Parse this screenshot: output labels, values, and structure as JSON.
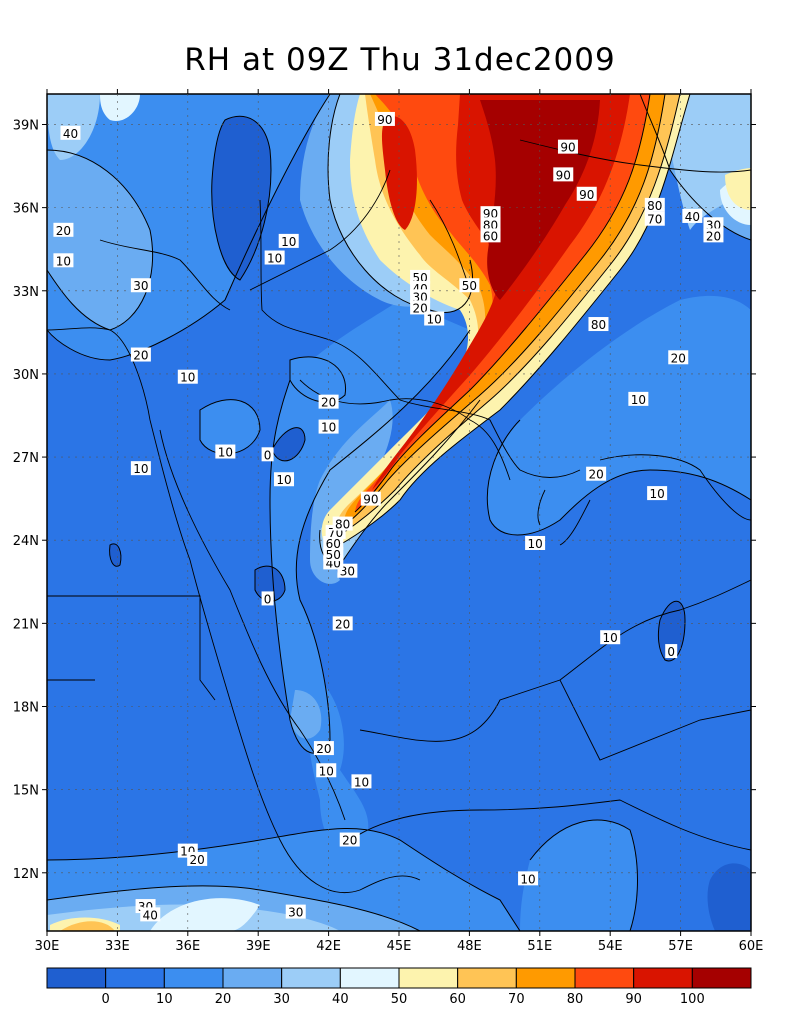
{
  "title": "RH at 09Z Thu 31dec2009",
  "lon_ticks": [
    "30E",
    "33E",
    "36E",
    "39E",
    "42E",
    "45E",
    "48E",
    "51E",
    "54E",
    "57E",
    "60E"
  ],
  "lat_ticks": [
    "39N",
    "36N",
    "33N",
    "30N",
    "27N",
    "24N",
    "21N",
    "18N",
    "15N",
    "12N"
  ],
  "colorbar": {
    "colors": [
      "#1f5fd0",
      "#2b75e6",
      "#3c8ef0",
      "#6aacf2",
      "#9ccdf7",
      "#e2f6ff",
      "#fdf3ae",
      "#ffc455",
      "#ff9a00",
      "#ff4a0f",
      "#d91400",
      "#a50000"
    ],
    "labels": [
      "0",
      "10",
      "20",
      "30",
      "40",
      "50",
      "60",
      "70",
      "80",
      "90",
      "100"
    ]
  },
  "contour_labels": [
    {
      "text": "40",
      "lon": 31.0,
      "lat": 38.7
    },
    {
      "text": "20",
      "lon": 30.7,
      "lat": 35.2
    },
    {
      "text": "10",
      "lon": 30.7,
      "lat": 34.1
    },
    {
      "text": "30",
      "lon": 34.0,
      "lat": 33.2
    },
    {
      "text": "20",
      "lon": 34.0,
      "lat": 30.7
    },
    {
      "text": "10",
      "lon": 36.0,
      "lat": 29.9
    },
    {
      "text": "10",
      "lon": 34.0,
      "lat": 26.6
    },
    {
      "text": "10",
      "lon": 37.6,
      "lat": 27.2
    },
    {
      "text": "0",
      "lon": 39.4,
      "lat": 27.1
    },
    {
      "text": "10",
      "lon": 40.1,
      "lat": 26.2
    },
    {
      "text": "10",
      "lon": 40.3,
      "lat": 34.8
    },
    {
      "text": "10",
      "lon": 39.7,
      "lat": 34.2
    },
    {
      "text": "20",
      "lon": 42.0,
      "lat": 29.0
    },
    {
      "text": "10",
      "lon": 42.0,
      "lat": 28.1
    },
    {
      "text": "0",
      "lon": 39.4,
      "lat": 21.9
    },
    {
      "text": "20",
      "lon": 42.6,
      "lat": 21.0
    },
    {
      "text": "30",
      "lon": 42.8,
      "lat": 22.9
    },
    {
      "text": "40",
      "lon": 42.2,
      "lat": 23.2
    },
    {
      "text": "50",
      "lon": 42.2,
      "lat": 23.5
    },
    {
      "text": "60",
      "lon": 42.2,
      "lat": 23.9
    },
    {
      "text": "70",
      "lon": 42.3,
      "lat": 24.3
    },
    {
      "text": "80",
      "lon": 42.6,
      "lat": 24.6
    },
    {
      "text": "90",
      "lon": 43.8,
      "lat": 25.5
    },
    {
      "text": "90",
      "lon": 44.4,
      "lat": 39.2
    },
    {
      "text": "50",
      "lon": 45.9,
      "lat": 33.5
    },
    {
      "text": "40",
      "lon": 45.9,
      "lat": 33.1
    },
    {
      "text": "30",
      "lon": 45.9,
      "lat": 32.8
    },
    {
      "text": "20",
      "lon": 45.9,
      "lat": 32.4
    },
    {
      "text": "10",
      "lon": 46.5,
      "lat": 32.0
    },
    {
      "text": "50",
      "lon": 48.0,
      "lat": 33.2
    },
    {
      "text": "90",
      "lon": 48.9,
      "lat": 35.8
    },
    {
      "text": "80",
      "lon": 48.9,
      "lat": 35.4
    },
    {
      "text": "60",
      "lon": 48.9,
      "lat": 35.0
    },
    {
      "text": "90",
      "lon": 52.2,
      "lat": 38.2
    },
    {
      "text": "90",
      "lon": 52.0,
      "lat": 37.2
    },
    {
      "text": "90",
      "lon": 53.0,
      "lat": 36.5
    },
    {
      "text": "80",
      "lon": 55.9,
      "lat": 36.1
    },
    {
      "text": "70",
      "lon": 55.9,
      "lat": 35.6
    },
    {
      "text": "40",
      "lon": 57.5,
      "lat": 35.7
    },
    {
      "text": "30",
      "lon": 58.4,
      "lat": 35.4
    },
    {
      "text": "20",
      "lon": 58.4,
      "lat": 35.0
    },
    {
      "text": "80",
      "lon": 53.5,
      "lat": 31.8
    },
    {
      "text": "20",
      "lon": 56.9,
      "lat": 30.6
    },
    {
      "text": "10",
      "lon": 55.2,
      "lat": 29.1
    },
    {
      "text": "20",
      "lon": 53.4,
      "lat": 26.4
    },
    {
      "text": "10",
      "lon": 56.0,
      "lat": 25.7
    },
    {
      "text": "10",
      "lon": 50.8,
      "lat": 23.9
    },
    {
      "text": "10",
      "lon": 54.0,
      "lat": 20.5
    },
    {
      "text": "0",
      "lon": 56.6,
      "lat": 20.0
    },
    {
      "text": "20",
      "lon": 41.8,
      "lat": 16.5
    },
    {
      "text": "10",
      "lon": 41.9,
      "lat": 15.7
    },
    {
      "text": "10",
      "lon": 43.4,
      "lat": 15.3
    },
    {
      "text": "20",
      "lon": 42.9,
      "lat": 13.2
    },
    {
      "text": "10",
      "lon": 36.0,
      "lat": 12.8
    },
    {
      "text": "20",
      "lon": 36.4,
      "lat": 12.5
    },
    {
      "text": "10",
      "lon": 50.5,
      "lat": 11.8
    },
    {
      "text": "30",
      "lon": 34.2,
      "lat": 10.8
    },
    {
      "text": "40",
      "lon": 34.4,
      "lat": 10.5
    },
    {
      "text": "30",
      "lon": 40.6,
      "lat": 10.6
    }
  ]
}
